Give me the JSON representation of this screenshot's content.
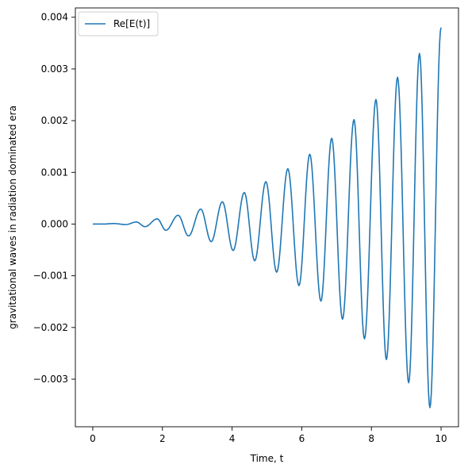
{
  "chart_data": {
    "type": "line",
    "xlabel": "Time, t",
    "ylabel": "gravitational waves in radiation dominated era",
    "xlim": [
      -0.5,
      10.5
    ],
    "ylim": [
      -0.00392,
      0.00418
    ],
    "xticks": [
      0,
      2,
      4,
      6,
      8,
      10
    ],
    "xtick_labels": [
      "0",
      "2",
      "4",
      "6",
      "8",
      "10"
    ],
    "yticks": [
      -0.003,
      -0.002,
      -0.001,
      0.0,
      0.001,
      0.002,
      0.003,
      0.004
    ],
    "ytick_labels": [
      "−0.003",
      "−0.002",
      "−0.001",
      "0.000",
      "0.001",
      "0.002",
      "0.003",
      "0.004"
    ],
    "grid": false,
    "legend_position": "top-left",
    "series": [
      {
        "name": "Re[E(t)]",
        "color": "#1f77b4",
        "x": [
          0.0,
          0.3,
          0.6,
          0.95,
          1.25,
          1.5,
          1.85,
          2.1,
          2.45,
          2.75,
          3.1,
          3.4,
          3.72,
          4.03,
          4.35,
          4.65,
          4.97,
          5.28,
          5.6,
          5.92,
          6.23,
          6.55,
          6.86,
          7.17,
          7.5,
          7.8,
          8.13,
          8.43,
          8.75,
          9.07,
          9.38,
          9.68,
          10.0
        ],
        "y": [
          0.0,
          0.0,
          1e-05,
          -1e-05,
          4e-05,
          -5e-05,
          0.0001,
          -0.00012,
          0.00017,
          -0.00023,
          0.00029,
          -0.00034,
          0.00043,
          -0.00051,
          0.00061,
          -0.00071,
          0.00082,
          -0.00093,
          0.00107,
          -0.00119,
          0.00135,
          -0.00149,
          0.00166,
          -0.00184,
          0.00202,
          -0.00222,
          0.00241,
          -0.00262,
          0.00284,
          -0.00307,
          0.0033,
          -0.00355,
          0.0038
        ]
      }
    ]
  }
}
